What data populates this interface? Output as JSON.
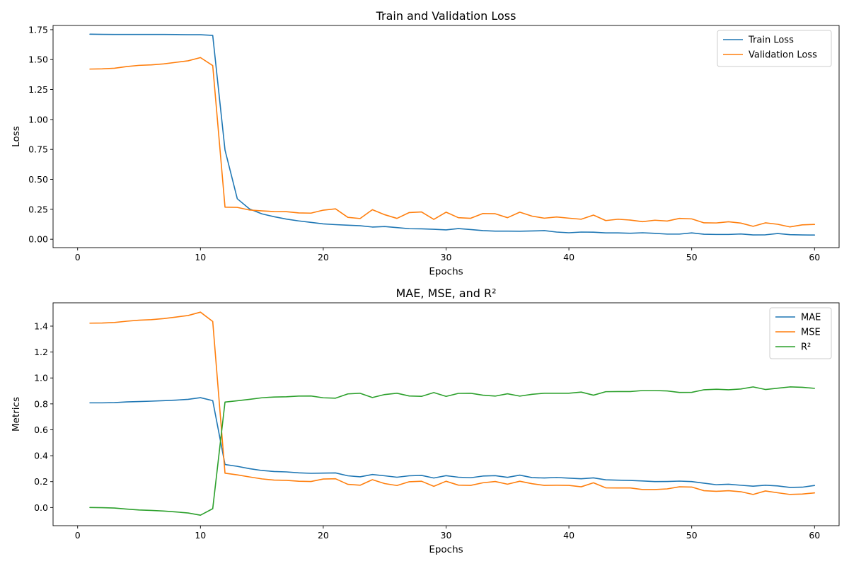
{
  "figure": {
    "background": "#ffffff"
  },
  "chart_data": [
    {
      "type": "line",
      "title": "Train and Validation Loss",
      "xlabel": "Epochs",
      "ylabel": "Loss",
      "xlim": [
        -2,
        62
      ],
      "ylim": [
        -0.07,
        1.785
      ],
      "xticks": [
        0,
        10,
        20,
        30,
        40,
        50,
        60
      ],
      "xtick_labels": [
        "0",
        "10",
        "20",
        "30",
        "40",
        "50",
        "60"
      ],
      "yticks": [
        0,
        0.25,
        0.5,
        0.75,
        1.0,
        1.25,
        1.5,
        1.75
      ],
      "ytick_labels": [
        "0.00",
        "0.25",
        "0.50",
        "0.75",
        "1.00",
        "1.25",
        "1.50",
        "1.75"
      ],
      "grid": false,
      "legend_position": "top-right",
      "x": [
        1,
        2,
        3,
        4,
        5,
        6,
        7,
        8,
        9,
        10,
        11,
        12,
        13,
        14,
        15,
        16,
        17,
        18,
        19,
        20,
        21,
        22,
        23,
        24,
        25,
        26,
        27,
        28,
        29,
        30,
        31,
        32,
        33,
        34,
        35,
        36,
        37,
        38,
        39,
        40,
        41,
        42,
        43,
        44,
        45,
        46,
        47,
        48,
        49,
        50,
        51,
        52,
        53,
        54,
        55,
        56,
        57,
        58,
        59,
        60
      ],
      "series": [
        {
          "name": "Train Loss",
          "color": "#1f77b4",
          "values": [
            1.712,
            1.711,
            1.71,
            1.71,
            1.71,
            1.71,
            1.71,
            1.709,
            1.708,
            1.708,
            1.702,
            0.745,
            0.338,
            0.253,
            0.212,
            0.188,
            0.168,
            0.153,
            0.141,
            0.128,
            0.122,
            0.117,
            0.113,
            0.102,
            0.106,
            0.097,
            0.088,
            0.087,
            0.083,
            0.078,
            0.089,
            0.081,
            0.072,
            0.068,
            0.068,
            0.067,
            0.069,
            0.072,
            0.06,
            0.054,
            0.06,
            0.059,
            0.053,
            0.053,
            0.05,
            0.054,
            0.049,
            0.043,
            0.043,
            0.053,
            0.042,
            0.04,
            0.04,
            0.044,
            0.036,
            0.037,
            0.048,
            0.038,
            0.036,
            0.035
          ]
        },
        {
          "name": "Validation Loss",
          "color": "#ff7f0e",
          "values": [
            1.421,
            1.423,
            1.428,
            1.442,
            1.452,
            1.456,
            1.464,
            1.477,
            1.49,
            1.517,
            1.45,
            0.268,
            0.266,
            0.244,
            0.237,
            0.231,
            0.23,
            0.22,
            0.218,
            0.243,
            0.254,
            0.183,
            0.173,
            0.247,
            0.205,
            0.174,
            0.223,
            0.228,
            0.166,
            0.226,
            0.18,
            0.175,
            0.215,
            0.213,
            0.18,
            0.226,
            0.193,
            0.176,
            0.186,
            0.176,
            0.167,
            0.202,
            0.156,
            0.167,
            0.16,
            0.147,
            0.159,
            0.152,
            0.174,
            0.17,
            0.137,
            0.136,
            0.146,
            0.135,
            0.108,
            0.137,
            0.125,
            0.103,
            0.12,
            0.124
          ]
        }
      ]
    },
    {
      "type": "line",
      "title": "MAE, MSE, and R²",
      "xlabel": "Epochs",
      "ylabel": "Metrics",
      "xlim": [
        -2,
        62
      ],
      "ylim": [
        -0.14,
        1.58
      ],
      "xticks": [
        0,
        10,
        20,
        30,
        40,
        50,
        60
      ],
      "xtick_labels": [
        "0",
        "10",
        "20",
        "30",
        "40",
        "50",
        "60"
      ],
      "yticks": [
        0,
        0.2,
        0.4,
        0.6,
        0.8,
        1.0,
        1.2,
        1.4
      ],
      "ytick_labels": [
        "0.0",
        "0.2",
        "0.4",
        "0.6",
        "0.8",
        "1.0",
        "1.2",
        "1.4"
      ],
      "grid": false,
      "legend_position": "top-right",
      "x": [
        1,
        2,
        3,
        4,
        5,
        6,
        7,
        8,
        9,
        10,
        11,
        12,
        13,
        14,
        15,
        16,
        17,
        18,
        19,
        20,
        21,
        22,
        23,
        24,
        25,
        26,
        27,
        28,
        29,
        30,
        31,
        32,
        33,
        34,
        35,
        36,
        37,
        38,
        39,
        40,
        41,
        42,
        43,
        44,
        45,
        46,
        47,
        48,
        49,
        50,
        51,
        52,
        53,
        54,
        55,
        56,
        57,
        58,
        59,
        60
      ],
      "series": [
        {
          "name": "MAE",
          "color": "#1f77b4",
          "values": [
            0.808,
            0.808,
            0.81,
            0.815,
            0.818,
            0.821,
            0.825,
            0.829,
            0.835,
            0.848,
            0.825,
            0.332,
            0.318,
            0.3,
            0.286,
            0.278,
            0.275,
            0.268,
            0.264,
            0.266,
            0.267,
            0.245,
            0.237,
            0.255,
            0.245,
            0.234,
            0.245,
            0.248,
            0.228,
            0.246,
            0.234,
            0.23,
            0.243,
            0.246,
            0.233,
            0.25,
            0.231,
            0.228,
            0.232,
            0.227,
            0.222,
            0.229,
            0.214,
            0.211,
            0.209,
            0.205,
            0.2,
            0.201,
            0.204,
            0.2,
            0.188,
            0.176,
            0.18,
            0.172,
            0.165,
            0.172,
            0.167,
            0.155,
            0.157,
            0.17
          ]
        },
        {
          "name": "MSE",
          "color": "#ff7f0e",
          "values": [
            1.423,
            1.424,
            1.428,
            1.438,
            1.446,
            1.45,
            1.458,
            1.47,
            1.482,
            1.508,
            1.436,
            0.265,
            0.252,
            0.236,
            0.221,
            0.212,
            0.21,
            0.203,
            0.201,
            0.22,
            0.222,
            0.179,
            0.172,
            0.215,
            0.185,
            0.17,
            0.199,
            0.203,
            0.164,
            0.203,
            0.173,
            0.171,
            0.191,
            0.201,
            0.18,
            0.203,
            0.184,
            0.171,
            0.172,
            0.171,
            0.16,
            0.191,
            0.152,
            0.151,
            0.151,
            0.139,
            0.139,
            0.144,
            0.16,
            0.158,
            0.13,
            0.125,
            0.13,
            0.122,
            0.101,
            0.128,
            0.114,
            0.101,
            0.104,
            0.113
          ]
        },
        {
          "name": "R²",
          "color": "#2ca02c",
          "values": [
            0.0,
            -0.001,
            -0.004,
            -0.012,
            -0.019,
            -0.022,
            -0.027,
            -0.034,
            -0.042,
            -0.059,
            -0.009,
            0.814,
            0.824,
            0.835,
            0.847,
            0.853,
            0.855,
            0.86,
            0.861,
            0.847,
            0.844,
            0.877,
            0.882,
            0.849,
            0.872,
            0.882,
            0.861,
            0.858,
            0.887,
            0.858,
            0.881,
            0.882,
            0.867,
            0.86,
            0.878,
            0.86,
            0.874,
            0.882,
            0.882,
            0.882,
            0.891,
            0.867,
            0.894,
            0.895,
            0.895,
            0.903,
            0.903,
            0.9,
            0.888,
            0.889,
            0.909,
            0.913,
            0.909,
            0.915,
            0.931,
            0.911,
            0.921,
            0.931,
            0.928,
            0.92
          ]
        }
      ]
    }
  ]
}
